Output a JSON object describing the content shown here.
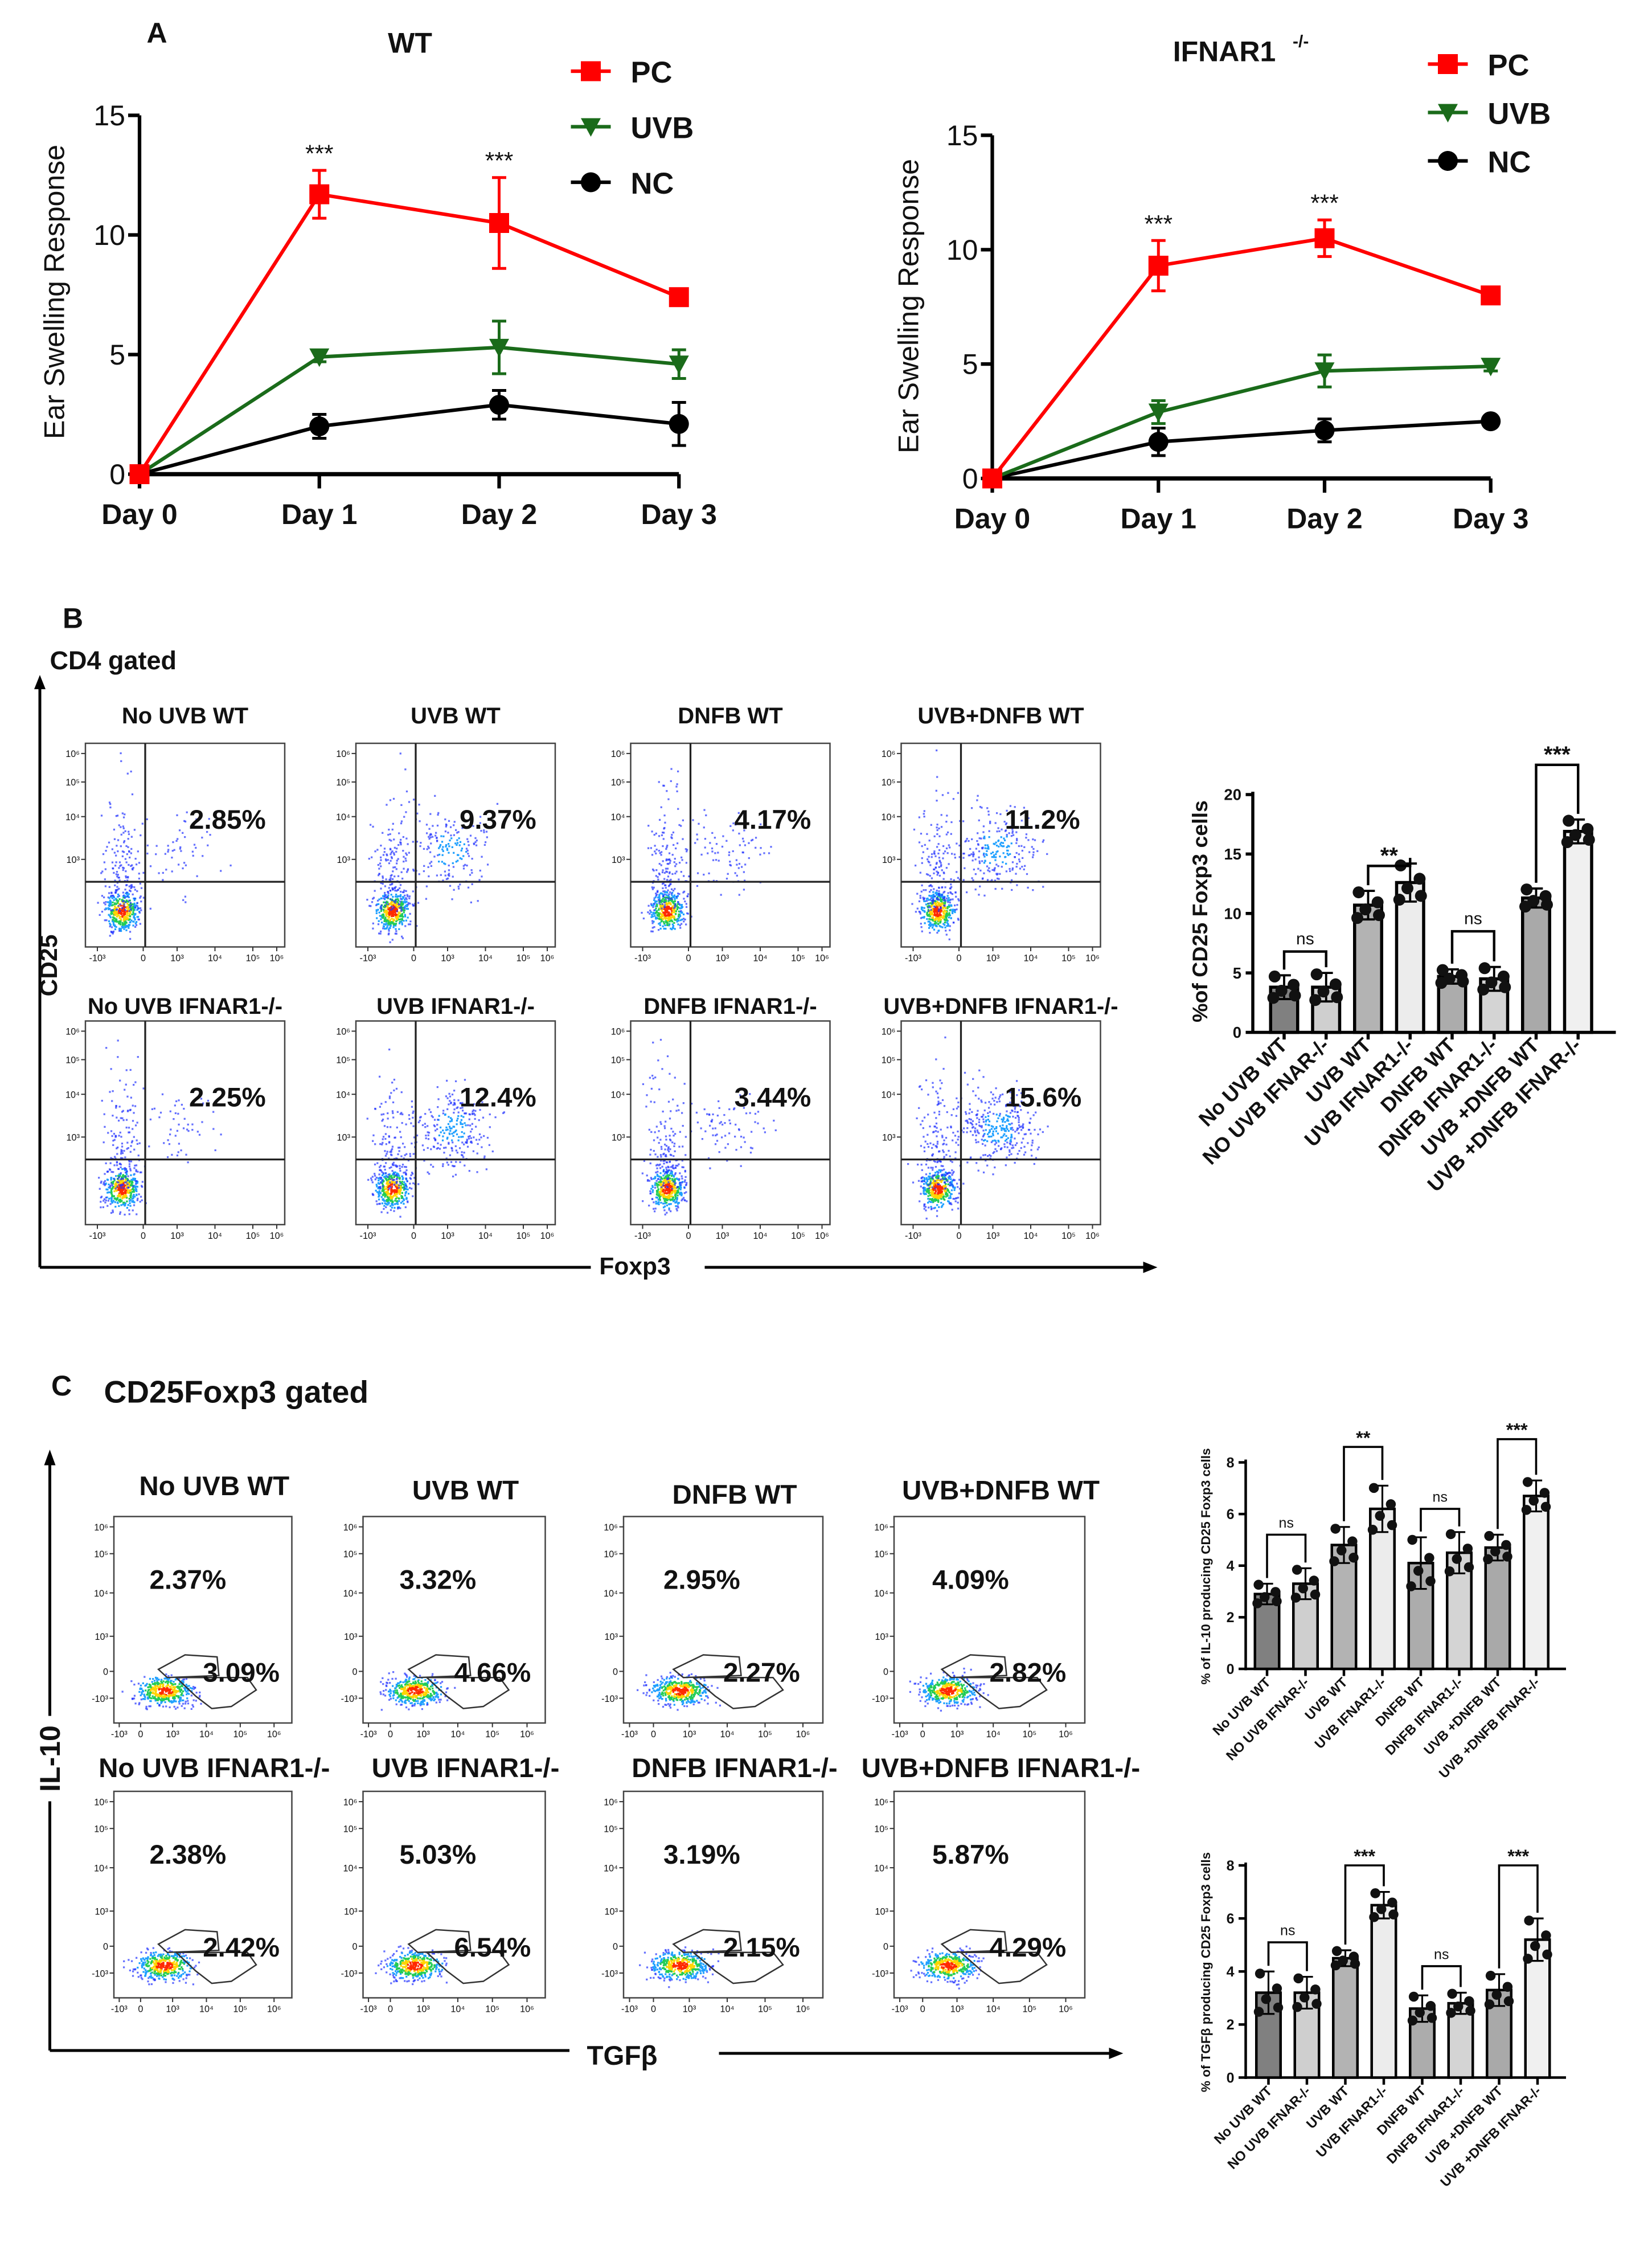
{
  "panel_labels": {
    "a": "A",
    "b": "B",
    "c": "C"
  },
  "colors": {
    "pc": "#ff0000",
    "uvb": "#1a6b1a",
    "nc": "#000000"
  },
  "chart_data": [
    {
      "type": "line",
      "title": "WT",
      "title_sup": "",
      "categories": [
        "Day 0",
        "Day 1",
        "Day 2",
        "Day 3"
      ],
      "ylabel": "Ear Swelling Response",
      "ylim": [
        0,
        15
      ],
      "yticks": [
        "0",
        "5",
        "10",
        "15"
      ],
      "legend": "top-right",
      "series": [
        {
          "name": "PC",
          "marker": "square",
          "values": [
            0,
            11.7,
            10.5,
            7.4
          ],
          "err": [
            0,
            1.0,
            1.9,
            0.3
          ]
        },
        {
          "name": "UVB",
          "marker": "triangle-down",
          "values": [
            0,
            4.9,
            5.3,
            4.6
          ],
          "err": [
            0,
            0.2,
            1.1,
            0.6
          ]
        },
        {
          "name": "NC",
          "marker": "circle",
          "values": [
            0,
            2.0,
            2.9,
            2.1
          ],
          "err": [
            0,
            0.5,
            0.6,
            0.9
          ]
        }
      ],
      "annotations": [
        {
          "category": 1,
          "text": "***"
        },
        {
          "category": 2,
          "text": "***"
        }
      ]
    },
    {
      "type": "line",
      "title": "IFNAR1",
      "title_sup": "-/-",
      "categories": [
        "Day 0",
        "Day 1",
        "Day 2",
        "Day 3"
      ],
      "ylabel": "Ear Swelling Response",
      "ylim": [
        0,
        15
      ],
      "yticks": [
        "0",
        "5",
        "10",
        "15"
      ],
      "legend": "top-right",
      "series": [
        {
          "name": "PC",
          "marker": "square",
          "values": [
            0,
            9.3,
            10.5,
            8.0
          ],
          "err": [
            0,
            1.1,
            0.8,
            0.3
          ]
        },
        {
          "name": "UVB",
          "marker": "triangle-down",
          "values": [
            0,
            2.9,
            4.7,
            4.9
          ],
          "err": [
            0,
            0.5,
            0.7,
            0.2
          ]
        },
        {
          "name": "NC",
          "marker": "circle",
          "values": [
            0,
            1.6,
            2.1,
            2.5
          ],
          "err": [
            0,
            0.6,
            0.5,
            0.2
          ]
        }
      ],
      "annotations": [
        {
          "category": 1,
          "text": "***"
        },
        {
          "category": 2,
          "text": "***"
        }
      ]
    },
    {
      "type": "bar",
      "title": "",
      "ylabel": "%of CD25 Foxp3 cells",
      "ylim": [
        0,
        20
      ],
      "yticks": [
        "0",
        "5",
        "10",
        "15",
        "20"
      ],
      "categories": [
        "No UVB WT",
        "NO UVB IFNAR-/-",
        "UVB WT",
        "UVB IFNAR1-/-",
        "DNFB WT",
        "DNFB IFNAR1-/-",
        "UVB +DNFB WT",
        "UVB +DNFB IFNAR-/-"
      ],
      "values": [
        3.8,
        3.8,
        10.7,
        12.6,
        4.7,
        4.5,
        11.3,
        16.9
      ],
      "sd": [
        1.0,
        1.2,
        1.2,
        1.6,
        0.6,
        1.0,
        0.8,
        1.0
      ],
      "bar_colors": [
        "#808080",
        "#cfcfcf",
        "#b3b3b3",
        "#ececec",
        "#acacac",
        "#d4d4d4",
        "#a9a9a9",
        "#f0f0f0"
      ],
      "comparisons": [
        {
          "pair": [
            0,
            1
          ],
          "label": "ns",
          "level": 6.8
        },
        {
          "pair": [
            2,
            3
          ],
          "label": "**",
          "level": 14.0
        },
        {
          "pair": [
            4,
            5
          ],
          "label": "ns",
          "level": 8.5
        },
        {
          "pair": [
            6,
            7
          ],
          "label": "***",
          "level": 22.5
        }
      ]
    },
    {
      "type": "bar",
      "title": "",
      "ylabel": "% of IL-10 producing CD25 Foxp3 cells",
      "ylim": [
        0,
        8
      ],
      "yticks": [
        "0",
        "2",
        "4",
        "6",
        "8"
      ],
      "categories": [
        "No UVB WT",
        "NO UVB IFNAR-/-",
        "UVB WT",
        "UVB IFNAR1-/-",
        "DNFB WT",
        "DNFB IFNAR1-/-",
        "UVB +DNFB WT",
        "UVB +DNFB IFNAR-/-"
      ],
      "values": [
        2.9,
        3.3,
        4.8,
        6.2,
        4.1,
        4.5,
        4.7,
        6.7
      ],
      "sd": [
        0.4,
        0.6,
        0.7,
        0.9,
        1.0,
        0.8,
        0.5,
        0.6
      ],
      "bar_colors": [
        "#808080",
        "#cfcfcf",
        "#b3b3b3",
        "#ececec",
        "#acacac",
        "#d4d4d4",
        "#a9a9a9",
        "#f0f0f0"
      ],
      "comparisons": [
        {
          "pair": [
            0,
            1
          ],
          "label": "ns",
          "level": 5.2
        },
        {
          "pair": [
            2,
            3
          ],
          "label": "**",
          "level": 8.6
        },
        {
          "pair": [
            4,
            5
          ],
          "label": "ns",
          "level": 6.2
        },
        {
          "pair": [
            6,
            7
          ],
          "label": "***",
          "level": 8.9
        }
      ]
    },
    {
      "type": "bar",
      "title": "",
      "ylabel": "% of TGFβ producing CD25 Foxp3 cells",
      "ylim": [
        0,
        8
      ],
      "yticks": [
        "0",
        "2",
        "4",
        "6",
        "8"
      ],
      "categories": [
        "No UVB WT",
        "NO UVB IFNAR-/-",
        "UVB WT",
        "UVB IFNAR1-/-",
        "DNFB WT",
        "DNFB IFNAR1-/-",
        "UVB +DNFB WT",
        "UVB +DNFB IFNAR-/-"
      ],
      "values": [
        3.2,
        3.2,
        4.5,
        6.5,
        2.6,
        2.8,
        3.3,
        5.2
      ],
      "sd": [
        0.8,
        0.6,
        0.3,
        0.5,
        0.5,
        0.4,
        0.6,
        0.8
      ],
      "bar_colors": [
        "#808080",
        "#cfcfcf",
        "#b3b3b3",
        "#ececec",
        "#acacac",
        "#d4d4d4",
        "#a9a9a9",
        "#f0f0f0"
      ],
      "comparisons": [
        {
          "pair": [
            0,
            1
          ],
          "label": "ns",
          "level": 5.1
        },
        {
          "pair": [
            2,
            3
          ],
          "label": "***",
          "level": 8.0
        },
        {
          "pair": [
            4,
            5
          ],
          "label": "ns",
          "level": 4.2
        },
        {
          "pair": [
            6,
            7
          ],
          "label": "***",
          "level": 8.0
        }
      ]
    }
  ],
  "flow": {
    "y_ticks": [
      "10⁶",
      "10⁵",
      "10⁴",
      "10³",
      "0",
      "-10³"
    ],
    "x_ticks": [
      "-10³",
      "0",
      "10³",
      "10⁴",
      "10⁵",
      "10⁶"
    ],
    "b": {
      "header": "CD4 gated",
      "x_axis": "Foxp3",
      "y_axis": "CD25",
      "plots": [
        {
          "title": "No UVB WT",
          "pct": "2.85%"
        },
        {
          "title": "UVB WT",
          "pct": "9.37%"
        },
        {
          "title": "DNFB WT",
          "pct": "4.17%"
        },
        {
          "title": "UVB+DNFB WT",
          "pct": "11.2%"
        },
        {
          "title": "No UVB IFNAR1-/-",
          "pct": "2.25%"
        },
        {
          "title": "UVB IFNAR1-/-",
          "pct": "12.4%"
        },
        {
          "title": "DNFB IFNAR1-/-",
          "pct": "3.44%"
        },
        {
          "title": "UVB+DNFB IFNAR1-/-",
          "pct": "15.6%"
        }
      ]
    },
    "c": {
      "header": "CD25Foxp3 gated",
      "x_axis": "TGFβ",
      "y_axis": "IL-10",
      "plots": [
        {
          "title": "No UVB WT",
          "upper": "2.37%",
          "lower": "3.09%"
        },
        {
          "title": "UVB WT",
          "upper": "3.32%",
          "lower": "4.66%"
        },
        {
          "title": "DNFB WT",
          "upper": "2.95%",
          "lower": "2.27%"
        },
        {
          "title": "UVB+DNFB WT",
          "upper": "4.09%",
          "lower": "2.82%"
        },
        {
          "title": "No UVB IFNAR1-/-",
          "upper": "2.38%",
          "lower": "2.42%"
        },
        {
          "title": "UVB IFNAR1-/-",
          "upper": "5.03%",
          "lower": "6.54%"
        },
        {
          "title": "DNFB IFNAR1-/-",
          "upper": "3.19%",
          "lower": "2.15%"
        },
        {
          "title": "UVB+DNFB IFNAR1-/-",
          "upper": "5.87%",
          "lower": "4.29%"
        }
      ]
    }
  }
}
